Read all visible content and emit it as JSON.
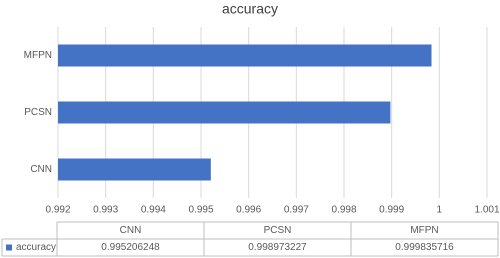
{
  "chart_data": {
    "type": "hbar",
    "title": "accuracy",
    "categories": [
      "CNN",
      "PCSN",
      "MFPN"
    ],
    "series": [
      {
        "name": "accuracy",
        "color": "#4472c4",
        "values": [
          0.995206248,
          0.998973227,
          0.999835716
        ]
      }
    ],
    "xlim": [
      0.992,
      1.001
    ],
    "xticks": [
      0.992,
      0.993,
      0.994,
      0.995,
      0.996,
      0.997,
      0.998,
      0.999,
      1,
      1.001
    ],
    "grid": true,
    "data_table": true
  }
}
